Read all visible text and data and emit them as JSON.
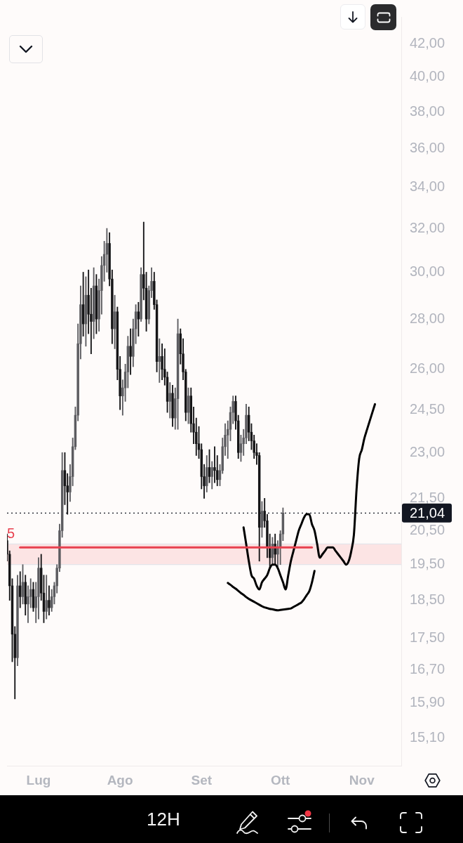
{
  "chart_data": {
    "type": "candlestick",
    "categories": [
      null,
      null,
      null,
      null,
      null,
      null,
      null,
      null,
      null,
      null,
      null,
      null,
      "Lug",
      null,
      null,
      null,
      null,
      null,
      null,
      null,
      null,
      null,
      null,
      null,
      null,
      null,
      null,
      null,
      null,
      null,
      null,
      null,
      null,
      null,
      null,
      null,
      null,
      null,
      null,
      null,
      null,
      null,
      null,
      "Ago",
      null,
      null,
      null,
      null,
      null,
      null,
      null,
      null,
      null,
      null,
      null,
      null,
      null,
      null,
      null,
      null,
      null,
      null,
      null,
      null,
      null,
      null,
      null,
      null,
      null,
      null,
      null,
      null,
      null,
      null,
      "Set",
      null,
      null,
      null,
      null,
      null,
      null,
      null,
      null,
      null,
      null,
      null,
      null,
      null,
      null,
      null,
      null,
      null,
      null,
      null,
      null,
      null,
      null,
      null,
      null,
      null,
      null,
      null,
      null,
      null,
      "Ott",
      null,
      null,
      null,
      null,
      null,
      null,
      null,
      null,
      null,
      null,
      null,
      null,
      null,
      null,
      null,
      null,
      null,
      null,
      null,
      null,
      null,
      null,
      null,
      null,
      null,
      null,
      null,
      null,
      null,
      null,
      "Nov",
      null,
      null,
      null,
      null,
      null,
      null,
      null,
      null,
      null,
      null,
      null,
      null,
      null,
      null,
      null
    ],
    "ohlc": [
      [
        20.2,
        20.4,
        19.6,
        19.8
      ],
      [
        19.8,
        19.9,
        18.5,
        18.9
      ],
      [
        18.9,
        19.1,
        16.9,
        17.6
      ],
      [
        17.6,
        17.8,
        16.0,
        17.0
      ],
      [
        17.0,
        19.2,
        16.8,
        18.9
      ],
      [
        18.9,
        19.3,
        18.3,
        18.6
      ],
      [
        18.6,
        19.5,
        18.4,
        19.0
      ],
      [
        19.0,
        19.2,
        18.1,
        18.4
      ],
      [
        18.4,
        18.9,
        17.9,
        18.6
      ],
      [
        18.6,
        19.1,
        18.3,
        18.8
      ],
      [
        18.8,
        19.0,
        18.2,
        18.3
      ],
      [
        18.3,
        19.0,
        17.9,
        18.6
      ],
      [
        18.6,
        19.7,
        18.0,
        19.4
      ],
      [
        19.4,
        19.8,
        18.5,
        18.7
      ],
      [
        18.7,
        19.2,
        17.9,
        18.2
      ],
      [
        18.2,
        19.2,
        18.0,
        18.5
      ],
      [
        18.5,
        18.9,
        18.1,
        18.3
      ],
      [
        18.3,
        18.8,
        18.2,
        18.6
      ],
      [
        18.6,
        19.0,
        18.4,
        18.9
      ],
      [
        18.9,
        19.5,
        18.7,
        19.4
      ],
      [
        19.4,
        20.7,
        19.3,
        20.5
      ],
      [
        20.5,
        23.0,
        20.3,
        22.4
      ],
      [
        22.4,
        23.0,
        21.3,
        21.9
      ],
      [
        21.9,
        22.3,
        21.0,
        21.7
      ],
      [
        21.7,
        22.6,
        21.4,
        22.2
      ],
      [
        22.2,
        23.5,
        21.9,
        23.2
      ],
      [
        23.2,
        24.6,
        23.1,
        24.3
      ],
      [
        24.3,
        27.8,
        24.1,
        27.0
      ],
      [
        27.0,
        29.4,
        26.4,
        28.6
      ],
      [
        28.6,
        30.0,
        27.3,
        27.8
      ],
      [
        27.8,
        29.8,
        26.9,
        29.0
      ],
      [
        29.0,
        30.1,
        27.4,
        28.2
      ],
      [
        28.2,
        29.3,
        26.6,
        27.9
      ],
      [
        27.9,
        30.2,
        27.2,
        29.4
      ],
      [
        29.4,
        29.9,
        27.4,
        28.0
      ],
      [
        28.0,
        29.7,
        27.5,
        29.2
      ],
      [
        29.2,
        30.7,
        28.2,
        30.3
      ],
      [
        30.3,
        31.4,
        29.6,
        30.8
      ],
      [
        30.8,
        32.0,
        30.0,
        31.3
      ],
      [
        31.3,
        31.8,
        29.4,
        29.7
      ],
      [
        29.7,
        30.1,
        27.0,
        27.6
      ],
      [
        27.6,
        29.0,
        26.8,
        28.3
      ],
      [
        28.3,
        28.5,
        25.6,
        26.0
      ],
      [
        26.0,
        26.5,
        24.5,
        25.0
      ],
      [
        25.0,
        25.6,
        24.3,
        25.3
      ],
      [
        25.3,
        26.2,
        24.8,
        25.9
      ],
      [
        25.9,
        27.3,
        25.3,
        26.9
      ],
      [
        26.9,
        27.6,
        25.8,
        26.5
      ],
      [
        26.5,
        28.0,
        26.1,
        27.6
      ],
      [
        27.6,
        28.6,
        27.0,
        28.3
      ],
      [
        28.3,
        28.7,
        27.3,
        28.0
      ],
      [
        28.0,
        30.2,
        27.9,
        29.9
      ],
      [
        29.9,
        32.3,
        28.8,
        29.3
      ],
      [
        29.3,
        30.0,
        27.5,
        28.0
      ],
      [
        28.0,
        29.4,
        27.8,
        29.2
      ],
      [
        29.2,
        30.2,
        28.9,
        29.6
      ],
      [
        29.6,
        30.0,
        28.4,
        28.6
      ],
      [
        28.6,
        28.8,
        25.9,
        26.3
      ],
      [
        26.3,
        27.2,
        25.5,
        26.5
      ],
      [
        26.5,
        27.0,
        25.6,
        26.0
      ],
      [
        26.0,
        26.8,
        25.4,
        25.7
      ],
      [
        25.7,
        25.9,
        24.4,
        24.8
      ],
      [
        24.8,
        25.5,
        24.2,
        25.1
      ],
      [
        25.1,
        25.4,
        23.9,
        24.2
      ],
      [
        24.2,
        25.3,
        23.8,
        24.9
      ],
      [
        24.9,
        28.0,
        23.8,
        27.4
      ],
      [
        27.4,
        27.6,
        26.2,
        26.6
      ],
      [
        26.6,
        27.2,
        25.6,
        25.9
      ],
      [
        25.9,
        26.0,
        24.1,
        24.4
      ],
      [
        24.4,
        25.3,
        24.0,
        25.0
      ],
      [
        25.0,
        25.3,
        23.7,
        24.0
      ],
      [
        24.0,
        24.6,
        23.3,
        23.7
      ],
      [
        23.7,
        24.2,
        22.9,
        23.3
      ],
      [
        23.3,
        23.9,
        22.8,
        23.1
      ],
      [
        23.1,
        23.3,
        21.8,
        22.2
      ],
      [
        22.2,
        22.6,
        21.5,
        21.9
      ],
      [
        21.9,
        22.9,
        21.7,
        22.5
      ],
      [
        22.5,
        23.1,
        22.0,
        22.2
      ],
      [
        22.2,
        22.7,
        21.8,
        22.5
      ],
      [
        22.5,
        23.2,
        22.0,
        22.4
      ],
      [
        22.4,
        22.9,
        21.9,
        22.1
      ],
      [
        22.1,
        22.6,
        21.9,
        22.4
      ],
      [
        22.4,
        23.5,
        22.3,
        23.2
      ],
      [
        23.2,
        24.0,
        22.9,
        23.6
      ],
      [
        23.6,
        24.1,
        22.8,
        23.8
      ],
      [
        23.8,
        24.6,
        23.4,
        24.4
      ],
      [
        24.4,
        25.0,
        24.0,
        24.8
      ],
      [
        24.8,
        25.0,
        23.8,
        24.1
      ],
      [
        24.1,
        24.3,
        22.8,
        23.0
      ],
      [
        23.0,
        23.6,
        22.7,
        23.3
      ],
      [
        23.3,
        23.8,
        22.9,
        23.5
      ],
      [
        23.5,
        24.7,
        23.3,
        24.3
      ],
      [
        24.3,
        24.6,
        23.4,
        23.7
      ],
      [
        23.7,
        24.0,
        23.1,
        23.4
      ],
      [
        23.4,
        23.6,
        22.8,
        23.0
      ],
      [
        23.0,
        23.3,
        22.6,
        22.9
      ],
      [
        22.9,
        23.0,
        19.6,
        20.6
      ],
      [
        20.6,
        21.4,
        20.3,
        21.1
      ],
      [
        21.1,
        21.5,
        20.6,
        20.8
      ],
      [
        20.8,
        21.0,
        19.7,
        20.0
      ],
      [
        20.0,
        20.4,
        19.4,
        19.7
      ],
      [
        19.7,
        20.3,
        19.5,
        20.1
      ],
      [
        20.1,
        20.4,
        19.5,
        19.8
      ],
      [
        19.8,
        20.2,
        19.4,
        20.0
      ],
      [
        20.0,
        20.5,
        19.5,
        20.4
      ],
      [
        20.4,
        21.2,
        20.2,
        21.04
      ],
      null,
      null,
      null,
      null,
      null,
      null,
      null,
      null,
      null,
      null,
      null,
      null,
      null,
      null,
      null,
      null,
      null,
      null,
      null,
      null,
      null,
      null,
      null,
      null,
      null,
      null,
      null,
      null,
      null,
      null,
      null,
      null,
      null,
      null,
      null,
      null,
      null,
      null,
      null,
      null,
      null,
      null,
      null,
      null,
      null
    ],
    "colors": [
      "#151517",
      "#151517",
      "#151517",
      "#151517",
      "#5c5c60",
      "#151517",
      "#5c5c60",
      "#151517",
      "#5c5c60",
      "#5c5c60",
      "#151517",
      "#5c5c60",
      "#5c5c60",
      "#151517",
      "#151517",
      "#5c5c60",
      "#151517",
      "#5c5c60",
      "#5c5c60",
      "#5c5c60",
      "#5c5c60",
      "#5c5c60",
      "#151517",
      "#151517",
      "#5c5c60",
      "#5c5c60",
      "#5c5c60",
      "#5c5c60",
      "#5c5c60",
      "#151517",
      "#5c5c60",
      "#151517",
      "#151517",
      "#5c5c60",
      "#151517",
      "#5c5c60",
      "#5c5c60",
      "#5c5c60",
      "#5c5c60",
      "#151517",
      "#151517",
      "#5c5c60",
      "#151517",
      "#151517",
      "#5c5c60",
      "#5c5c60",
      "#5c5c60",
      "#151517",
      "#5c5c60",
      "#5c5c60",
      "#151517",
      "#5c5c60",
      "#151517",
      "#151517",
      "#5c5c60",
      "#5c5c60",
      "#151517",
      "#151517",
      "#5c5c60",
      "#151517",
      "#151517",
      "#151517",
      "#5c5c60",
      "#151517",
      "#5c5c60",
      "#5c5c60",
      "#151517",
      "#151517",
      "#151517",
      "#5c5c60",
      "#151517",
      "#151517",
      "#151517",
      "#151517",
      "#151517",
      "#151517",
      "#5c5c60",
      "#151517",
      "#5c5c60",
      "#151517",
      "#151517",
      "#5c5c60",
      "#5c5c60",
      "#5c5c60",
      "#5c5c60",
      "#5c5c60",
      "#5c5c60",
      "#151517",
      "#151517",
      "#5c5c60",
      "#5c5c60",
      "#5c5c60",
      "#151517",
      "#151517",
      "#151517",
      "#151517",
      "#151517",
      "#5c5c60",
      "#151517",
      "#151517",
      "#151517",
      "#5c5c60",
      "#151517",
      "#5c5c60",
      "#5c5c60",
      "#5c5c60",
      null,
      null,
      null,
      null,
      null,
      null,
      null,
      null,
      null,
      null,
      null,
      null,
      null,
      null,
      null,
      null,
      null,
      null,
      null,
      null,
      null,
      null,
      null,
      null,
      null,
      null,
      null,
      null,
      null,
      null,
      null,
      null,
      null,
      null,
      null,
      null,
      null,
      null,
      null,
      null,
      null,
      null,
      null,
      null,
      null
    ],
    "series": [
      {
        "type": "line",
        "color": "#e8414f",
        "values": [
          null,
          null,
          null,
          null,
          null,
          20.0,
          20.0,
          20.0,
          20.0,
          20.0,
          20.0,
          20.0,
          20.0,
          20.0,
          20.0,
          20.0,
          20.0,
          20.0,
          20.0,
          20.0,
          20.0,
          20.0,
          20.0,
          20.0,
          20.0,
          20.0,
          20.0,
          20.0,
          20.0,
          20.0,
          20.0,
          20.0,
          20.0,
          20.0,
          20.0,
          20.0,
          20.0,
          20.0,
          20.0,
          20.0,
          20.0,
          20.0,
          20.0,
          20.0,
          20.0,
          20.0,
          20.0,
          20.0,
          20.0,
          20.0,
          20.0,
          20.0,
          20.0,
          20.0,
          20.0,
          20.0,
          20.0,
          20.0,
          20.0,
          20.0,
          20.0,
          20.0,
          20.0,
          20.0,
          20.0,
          20.0,
          20.0,
          20.0,
          20.0,
          20.0,
          20.0,
          20.0,
          20.0,
          20.0,
          20.0,
          20.0,
          20.0,
          20.0,
          20.0,
          20.0,
          20.0,
          20.0,
          20.0,
          20.0,
          20.0,
          20.0,
          20.0,
          20.0,
          20.0,
          20.0,
          20.0,
          20.0,
          20.0,
          20.0,
          20.0,
          20.0,
          20.0,
          20.0,
          20.0,
          20.0,
          20.0,
          20.0,
          20.0,
          20.0,
          20.0,
          20.0,
          20.0,
          20.0,
          20.0,
          20.0,
          20.0,
          20.0,
          20.0,
          20.0,
          20.0,
          20.0,
          20.0,
          null,
          null,
          null,
          null,
          null,
          null,
          null,
          null,
          null,
          null,
          null,
          null,
          null,
          null,
          null,
          null,
          null,
          null,
          null,
          null,
          null,
          null,
          null,
          null,
          null,
          null,
          null,
          null,
          null,
          null,
          null,
          null,
          null,
          null
        ]
      },
      {
        "type": "line",
        "color": "#000000",
        "values": [
          null,
          null,
          null,
          null,
          null,
          null,
          null,
          null,
          null,
          null,
          null,
          null,
          null,
          null,
          null,
          null,
          null,
          null,
          null,
          null,
          null,
          null,
          null,
          null,
          null,
          null,
          null,
          null,
          null,
          null,
          null,
          null,
          null,
          null,
          null,
          null,
          null,
          null,
          null,
          null,
          null,
          null,
          null,
          null,
          null,
          null,
          null,
          null,
          null,
          null,
          null,
          null,
          null,
          null,
          null,
          null,
          null,
          null,
          null,
          null,
          null,
          null,
          null,
          null,
          null,
          null,
          null,
          null,
          null,
          null,
          null,
          null,
          null,
          null,
          null,
          null,
          null,
          null,
          null,
          null,
          null,
          null,
          null,
          null,
          null,
          null,
          null,
          null,
          null,
          null,
          20.6,
          20.1,
          19.6,
          19.2,
          19.1,
          18.9,
          18.8,
          19.0,
          19.1,
          19.2,
          19.4,
          19.5,
          19.5,
          19.4,
          19.2,
          19.0,
          18.8,
          19.2,
          19.6,
          19.9,
          20.2,
          20.5,
          20.7,
          20.9,
          21.0,
          21.0,
          20.7,
          20.5,
          20.1,
          19.7,
          19.8,
          19.9,
          20.0,
          20.0,
          20.0,
          19.9,
          19.8,
          19.7,
          19.6,
          19.5,
          19.6,
          19.9,
          20.4,
          21.8,
          22.8,
          23.1,
          23.5,
          23.8,
          24.1,
          24.4,
          24.7,
          null,
          null,
          null,
          null,
          null,
          null,
          null,
          null,
          null,
          null
        ]
      },
      {
        "type": "line",
        "color": "#000000",
        "values": [
          null,
          null,
          null,
          null,
          null,
          null,
          null,
          null,
          null,
          null,
          null,
          null,
          null,
          null,
          null,
          null,
          null,
          null,
          null,
          null,
          null,
          null,
          null,
          null,
          null,
          null,
          null,
          null,
          null,
          null,
          null,
          null,
          null,
          null,
          null,
          null,
          null,
          null,
          null,
          null,
          null,
          null,
          null,
          null,
          null,
          null,
          null,
          null,
          null,
          null,
          null,
          null,
          null,
          null,
          null,
          null,
          null,
          null,
          null,
          null,
          null,
          null,
          null,
          null,
          null,
          null,
          null,
          null,
          null,
          null,
          null,
          null,
          null,
          null,
          null,
          null,
          null,
          null,
          null,
          null,
          null,
          null,
          null,
          null,
          18.98,
          18.93,
          18.87,
          18.82,
          18.76,
          18.7,
          18.65,
          18.59,
          18.54,
          18.5,
          18.46,
          18.42,
          18.38,
          18.34,
          18.31,
          18.29,
          18.27,
          18.26,
          18.24,
          18.23,
          18.24,
          18.25,
          18.26,
          18.27,
          18.28,
          18.32,
          18.36,
          18.4,
          18.44,
          18.53,
          18.64,
          18.75,
          18.99,
          19.32,
          null,
          null,
          null,
          null,
          null,
          null,
          null,
          null,
          null,
          null,
          null,
          null,
          null,
          null,
          null,
          null,
          null,
          null,
          null,
          null,
          null,
          null,
          null,
          null,
          null,
          null,
          null,
          null,
          null,
          null,
          null,
          null,
          null
        ]
      }
    ],
    "ylim": [
      14.5,
      43.7
    ],
    "yticks": [
      {
        "value": 42,
        "label": "42,00"
      },
      {
        "value": 40,
        "label": "40,00"
      },
      {
        "value": 38,
        "label": "38,00"
      },
      {
        "value": 36,
        "label": "36,00"
      },
      {
        "value": 34,
        "label": "34,00"
      },
      {
        "value": 32,
        "label": "32,00"
      },
      {
        "value": 30,
        "label": "30,00"
      },
      {
        "value": 28,
        "label": "28,00"
      },
      {
        "value": 26,
        "label": "26,00"
      },
      {
        "value": 24.5,
        "label": "24,50"
      },
      {
        "value": 23,
        "label": "23,00"
      },
      {
        "value": 21.5,
        "label": "21,50"
      },
      {
        "value": 20.5,
        "label": "20,50"
      },
      {
        "value": 19.5,
        "label": "19,50"
      },
      {
        "value": 18.5,
        "label": "18,50"
      },
      {
        "value": 17.5,
        "label": "17,50"
      },
      {
        "value": 16.7,
        "label": "16,70"
      },
      {
        "value": 15.9,
        "label": "15,90"
      },
      {
        "value": 15.1,
        "label": "15,10"
      }
    ],
    "log": true,
    "ref_lines": [
      {
        "axis": "y",
        "value": 21.04,
        "label": "21,04",
        "color": "#131722",
        "line_style": "dotted"
      }
    ],
    "bands": [
      {
        "axis": "y",
        "from": 19.5,
        "to": 20.1,
        "color": "#fce4e4"
      }
    ],
    "annotations": [
      {
        "text": "5",
        "y": 20.4
      },
      "12H"
    ]
  }
}
